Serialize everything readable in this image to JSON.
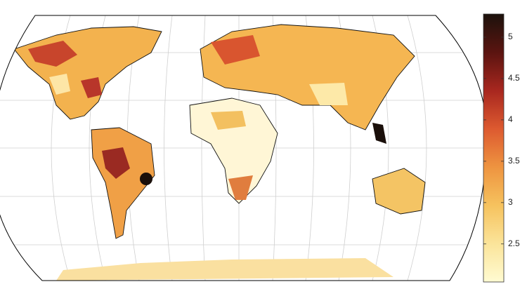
{
  "colorbar": {
    "range": [
      2.04,
      5.28
    ],
    "ticks": [
      2.5,
      3,
      3.5,
      4,
      4.5,
      5
    ],
    "colors": [
      "#fffbd2",
      "#fbe49a",
      "#f6c25e",
      "#ee9440",
      "#dd5a30",
      "#a8271f",
      "#5a1410",
      "#1c120c"
    ]
  }
}
